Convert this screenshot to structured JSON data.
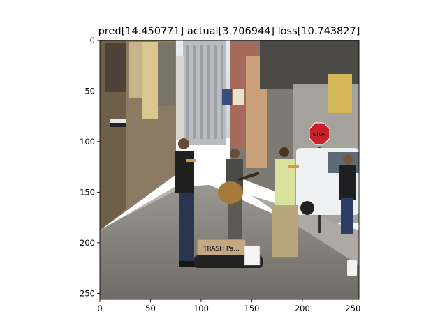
{
  "chart_data": {
    "type": "image",
    "title": "pred[14.450771] actual[3.706944] loss[10.743827]",
    "xlim": [
      0,
      256
    ],
    "ylim": [
      256,
      0
    ],
    "x_ticks": [
      0,
      50,
      100,
      150,
      200,
      250
    ],
    "y_ticks": [
      0,
      50,
      100,
      150,
      200,
      250
    ],
    "image_sign_text": "TRASH Pa..."
  }
}
